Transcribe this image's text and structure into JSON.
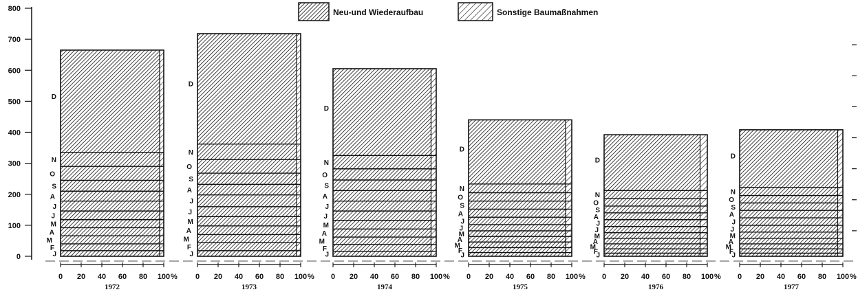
{
  "chart_data": {
    "type": "bar",
    "subtype": "stacked-cumulative-monthly",
    "y_axis": {
      "min": 0,
      "max": 800,
      "ticks": [
        0,
        100,
        200,
        300,
        400,
        500,
        600,
        700,
        800
      ]
    },
    "x_axis_ticks": [
      "0",
      "20",
      "40",
      "60",
      "80",
      "100"
    ],
    "x_unit": "%",
    "legend": [
      {
        "name": "Neu-und Wiederaufbau",
        "pattern": "dense-hatch"
      },
      {
        "name": "Sonstige Baumaßnahmen",
        "pattern": "light-hatch"
      }
    ],
    "legend_position": "top-center",
    "neu_share_percent": [
      96,
      96,
      95,
      94,
      93,
      95
    ],
    "years": [
      {
        "year": "1972",
        "months": [
          "J",
          "F",
          "M",
          "A",
          "M",
          "J",
          "J",
          "A",
          "S",
          "O",
          "N",
          "D"
        ],
        "cumulative": [
          18,
          40,
          66,
          92,
          118,
          146,
          178,
          210,
          245,
          290,
          335,
          665
        ]
      },
      {
        "year": "1973",
        "months": [
          "J",
          "F",
          "M",
          "A",
          "M",
          "J",
          "J",
          "A",
          "S",
          "O",
          "N",
          "D"
        ],
        "cumulative": [
          18,
          44,
          70,
          98,
          128,
          160,
          198,
          232,
          268,
          312,
          362,
          718
        ]
      },
      {
        "year": "1974",
        "months": [
          "J",
          "F",
          "M",
          "A",
          "M",
          "J",
          "J",
          "A",
          "S",
          "O",
          "N",
          "D"
        ],
        "cumulative": [
          16,
          38,
          62,
          88,
          116,
          146,
          178,
          212,
          246,
          282,
          325,
          605
        ]
      },
      {
        "year": "1975",
        "months": [
          "J",
          "F",
          "M",
          "A",
          "M",
          "J",
          "J",
          "A",
          "S",
          "O",
          "N",
          "D"
        ],
        "cumulative": [
          12,
          28,
          46,
          64,
          82,
          102,
          126,
          152,
          178,
          205,
          233,
          440
        ]
      },
      {
        "year": "1976",
        "months": [
          "J",
          "F",
          "M",
          "A",
          "M",
          "J",
          "J",
          "A",
          "S",
          "O",
          "N",
          "D"
        ],
        "cumulative": [
          10,
          24,
          40,
          58,
          76,
          96,
          118,
          140,
          162,
          186,
          212,
          392
        ]
      },
      {
        "year": "1977",
        "months": [
          "J",
          "F",
          "M",
          "A",
          "M",
          "J",
          "J",
          "A",
          "S",
          "O",
          "N",
          "D"
        ],
        "cumulative": [
          10,
          24,
          40,
          58,
          78,
          100,
          124,
          148,
          172,
          196,
          222,
          408
        ]
      }
    ]
  }
}
